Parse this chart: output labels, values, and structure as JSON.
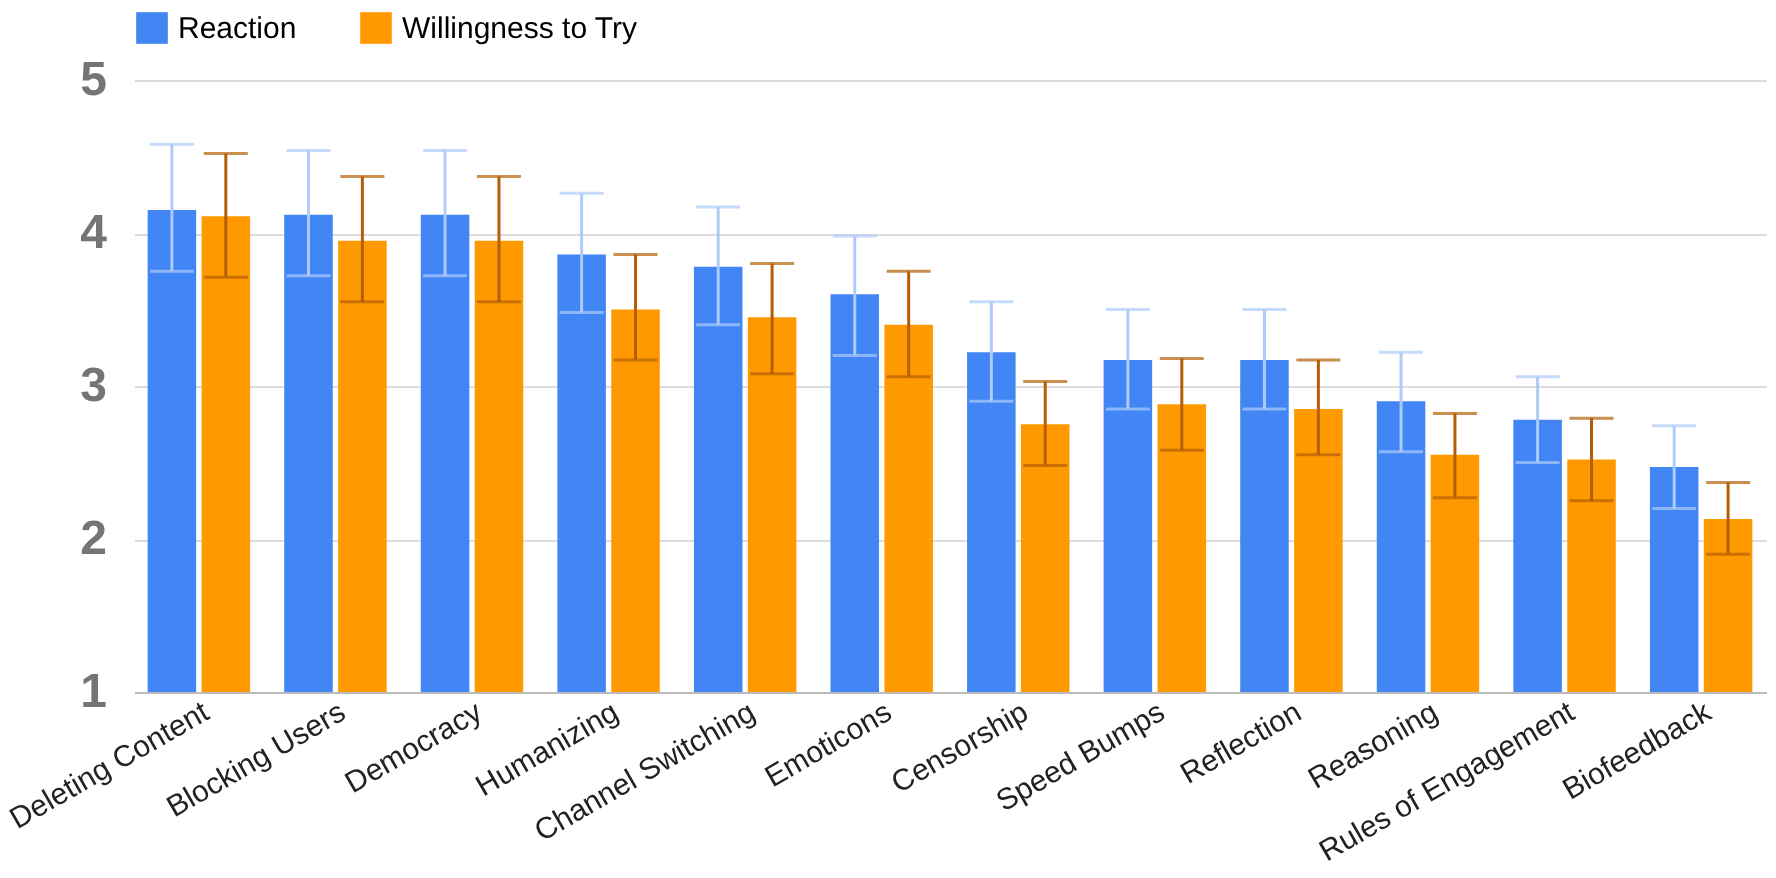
{
  "chart_data": {
    "type": "bar",
    "categories": [
      "Deleting Content",
      "Blocking Users",
      "Democracy",
      "Humanizing",
      "Channel Switching",
      "Emoticons",
      "Censorship",
      "Speed Bumps",
      "Reflection",
      "Reasoning",
      "Rules of Engagement",
      "Biofeedback"
    ],
    "series": [
      {
        "name": "Reaction",
        "color": "#4285f4",
        "values": [
          4.15,
          4.12,
          4.12,
          3.86,
          3.78,
          3.6,
          3.22,
          3.17,
          3.17,
          2.9,
          2.78,
          2.47
        ],
        "errors": [
          [
            3.75,
            4.58
          ],
          [
            3.72,
            4.54
          ],
          [
            3.72,
            4.54
          ],
          [
            3.48,
            4.26
          ],
          [
            3.4,
            4.17
          ],
          [
            3.2,
            3.98
          ],
          [
            2.9,
            3.55
          ],
          [
            2.85,
            3.5
          ],
          [
            2.85,
            3.5
          ],
          [
            2.57,
            3.22
          ],
          [
            2.5,
            3.06
          ],
          [
            2.2,
            2.74
          ]
        ]
      },
      {
        "name": "Willingness to Try",
        "color": "#ff9900",
        "values": [
          4.11,
          3.95,
          3.95,
          3.5,
          3.45,
          3.4,
          2.75,
          2.88,
          2.85,
          2.55,
          2.52,
          2.13
        ],
        "errors": [
          [
            3.71,
            4.52
          ],
          [
            3.55,
            4.37
          ],
          [
            3.55,
            4.37
          ],
          [
            3.17,
            3.86
          ],
          [
            3.08,
            3.8
          ],
          [
            3.06,
            3.75
          ],
          [
            2.48,
            3.03
          ],
          [
            2.58,
            3.18
          ],
          [
            2.55,
            3.17
          ],
          [
            2.27,
            2.82
          ],
          [
            2.25,
            2.79
          ],
          [
            1.9,
            2.37
          ]
        ]
      }
    ],
    "ylim": [
      1,
      5
    ],
    "yticks": [
      1,
      2,
      3,
      4,
      5
    ],
    "grid": "y",
    "legend": "top"
  }
}
